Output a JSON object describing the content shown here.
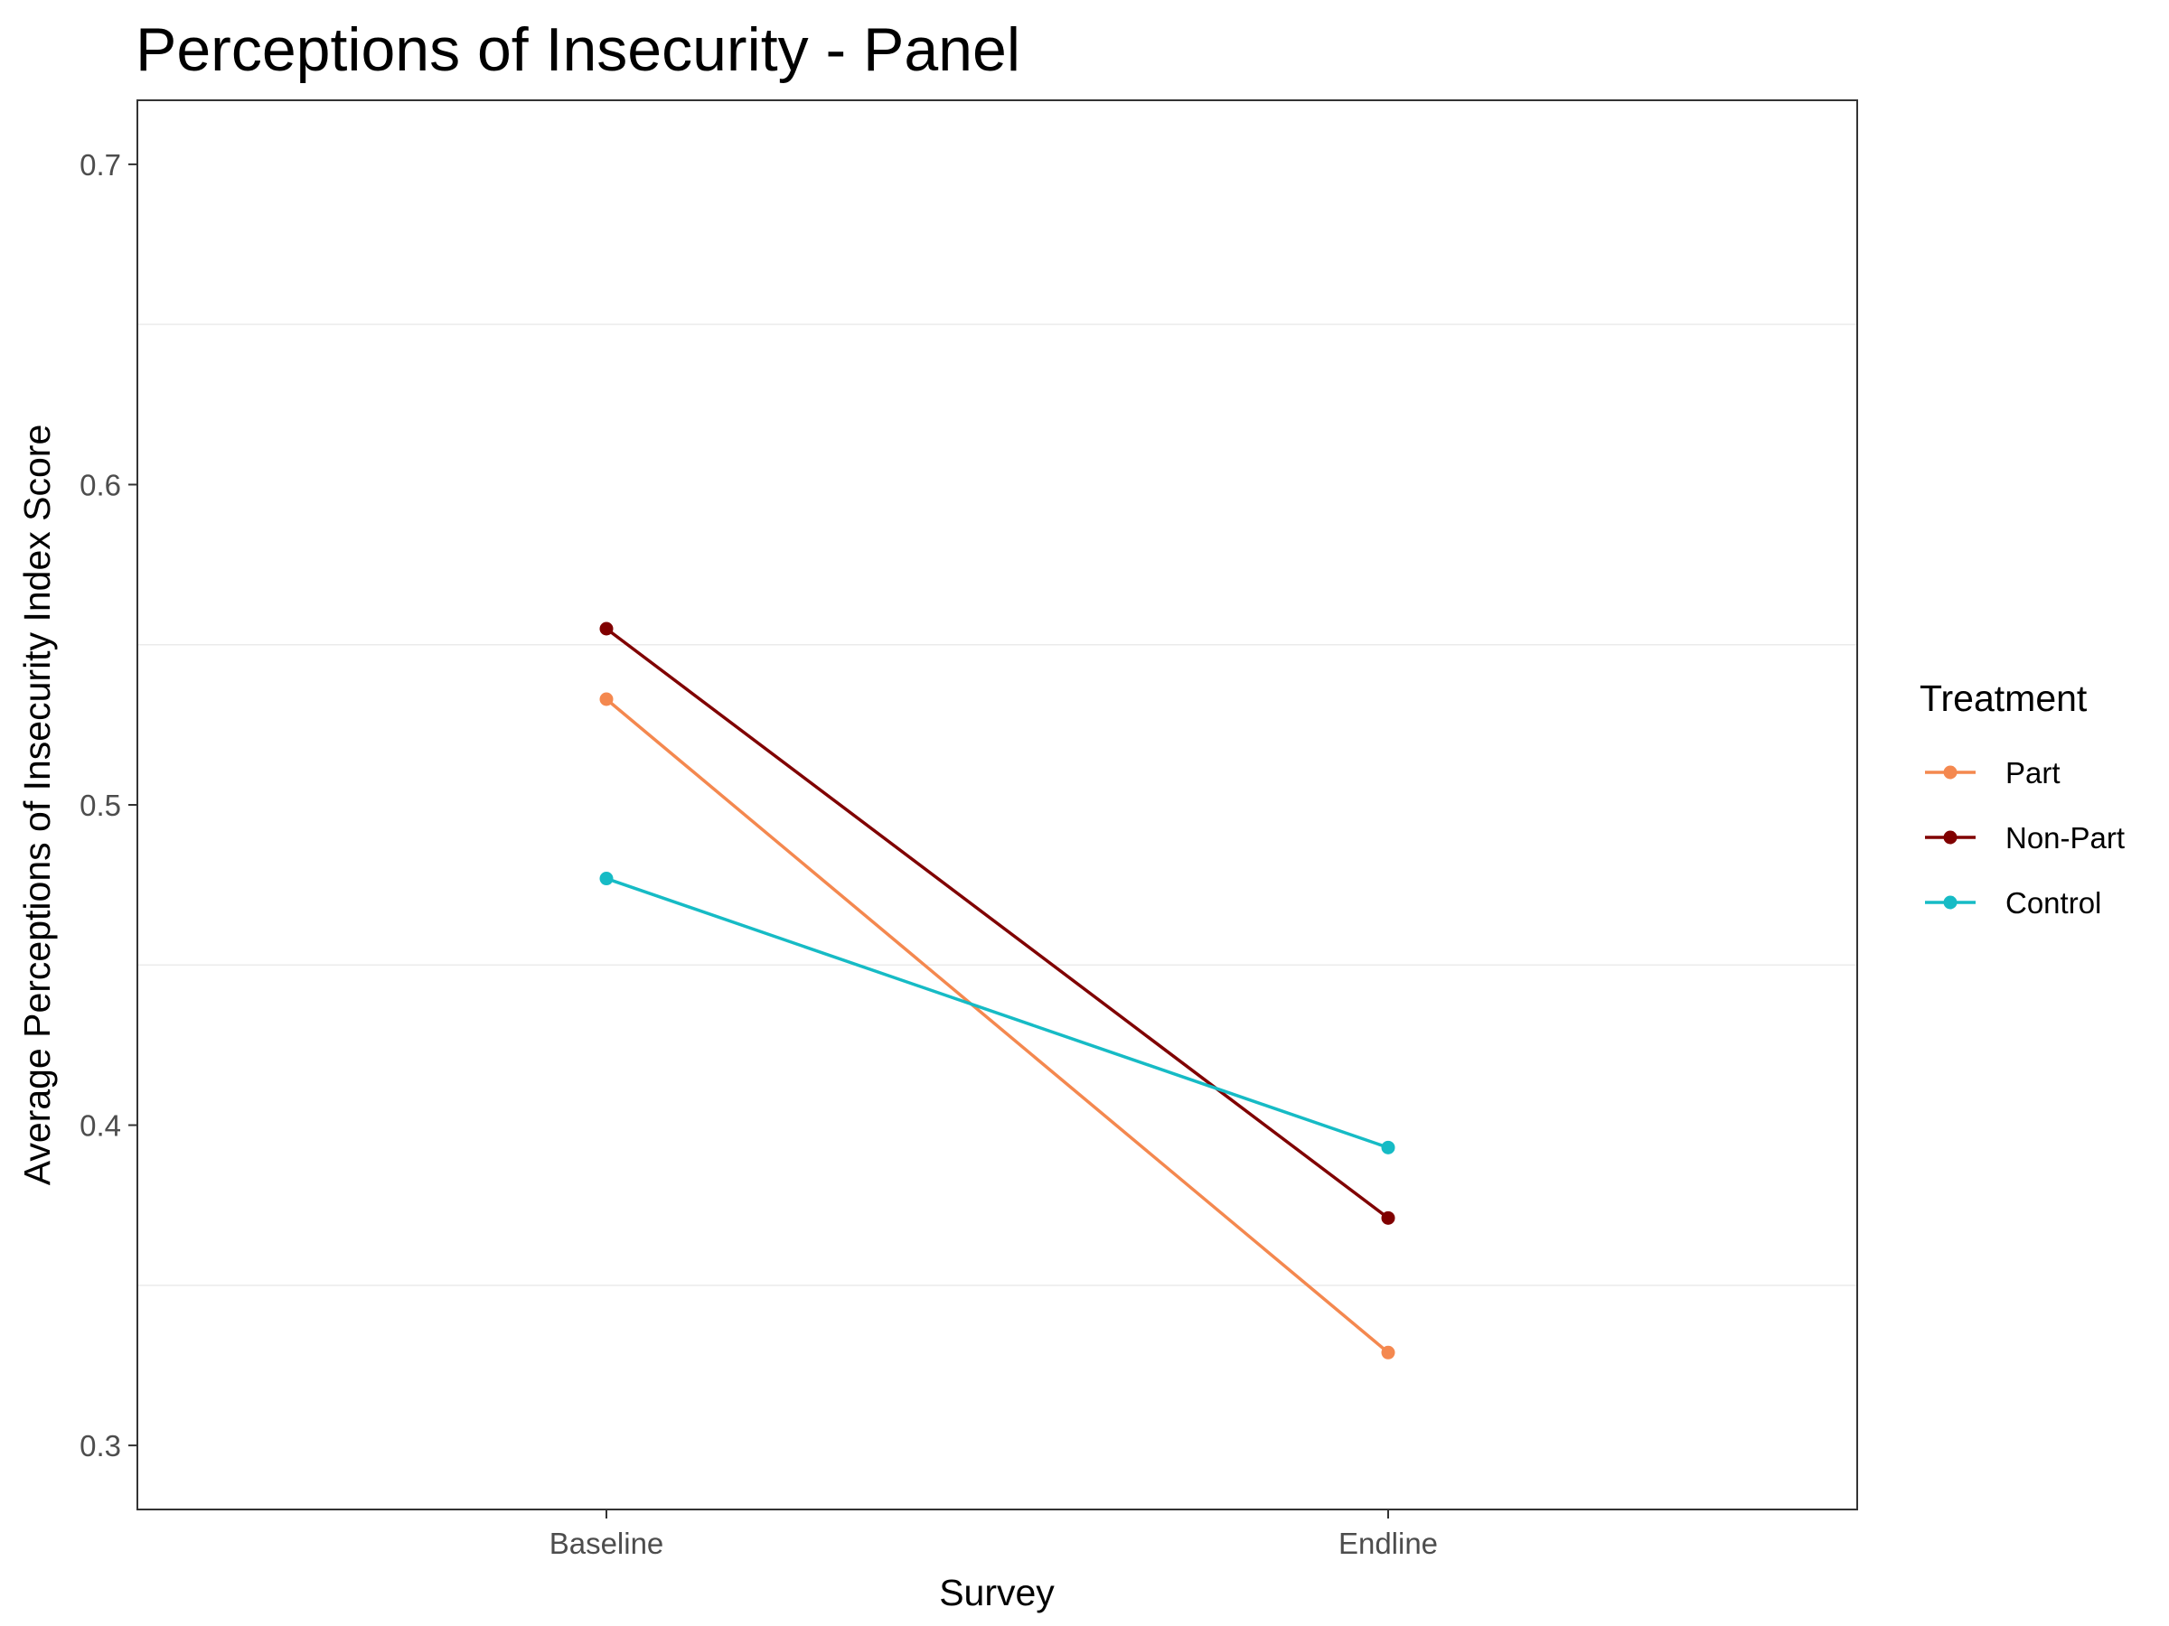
{
  "chart_data": {
    "type": "line",
    "title": "Perceptions of Insecurity - Panel",
    "xlabel": "Survey",
    "ylabel": "Average Perceptions of Insecurity Index Score",
    "categories": [
      "Baseline",
      "Endline"
    ],
    "ylim": [
      0.28,
      0.72
    ],
    "yticks": [
      0.3,
      0.4,
      0.5,
      0.6,
      0.7
    ],
    "ytick_labels": [
      "0.3",
      "0.4",
      "0.5",
      "0.6",
      "0.7"
    ],
    "grid": true,
    "legend": {
      "title": "Treatment",
      "position": "right"
    },
    "series": [
      {
        "name": "Part",
        "color": "#F4884F",
        "values": [
          0.533,
          0.329
        ]
      },
      {
        "name": "Non-Part",
        "color": "#800000",
        "values": [
          0.555,
          0.371
        ]
      },
      {
        "name": "Control",
        "color": "#16BBC5",
        "values": [
          0.477,
          0.393
        ]
      }
    ]
  }
}
